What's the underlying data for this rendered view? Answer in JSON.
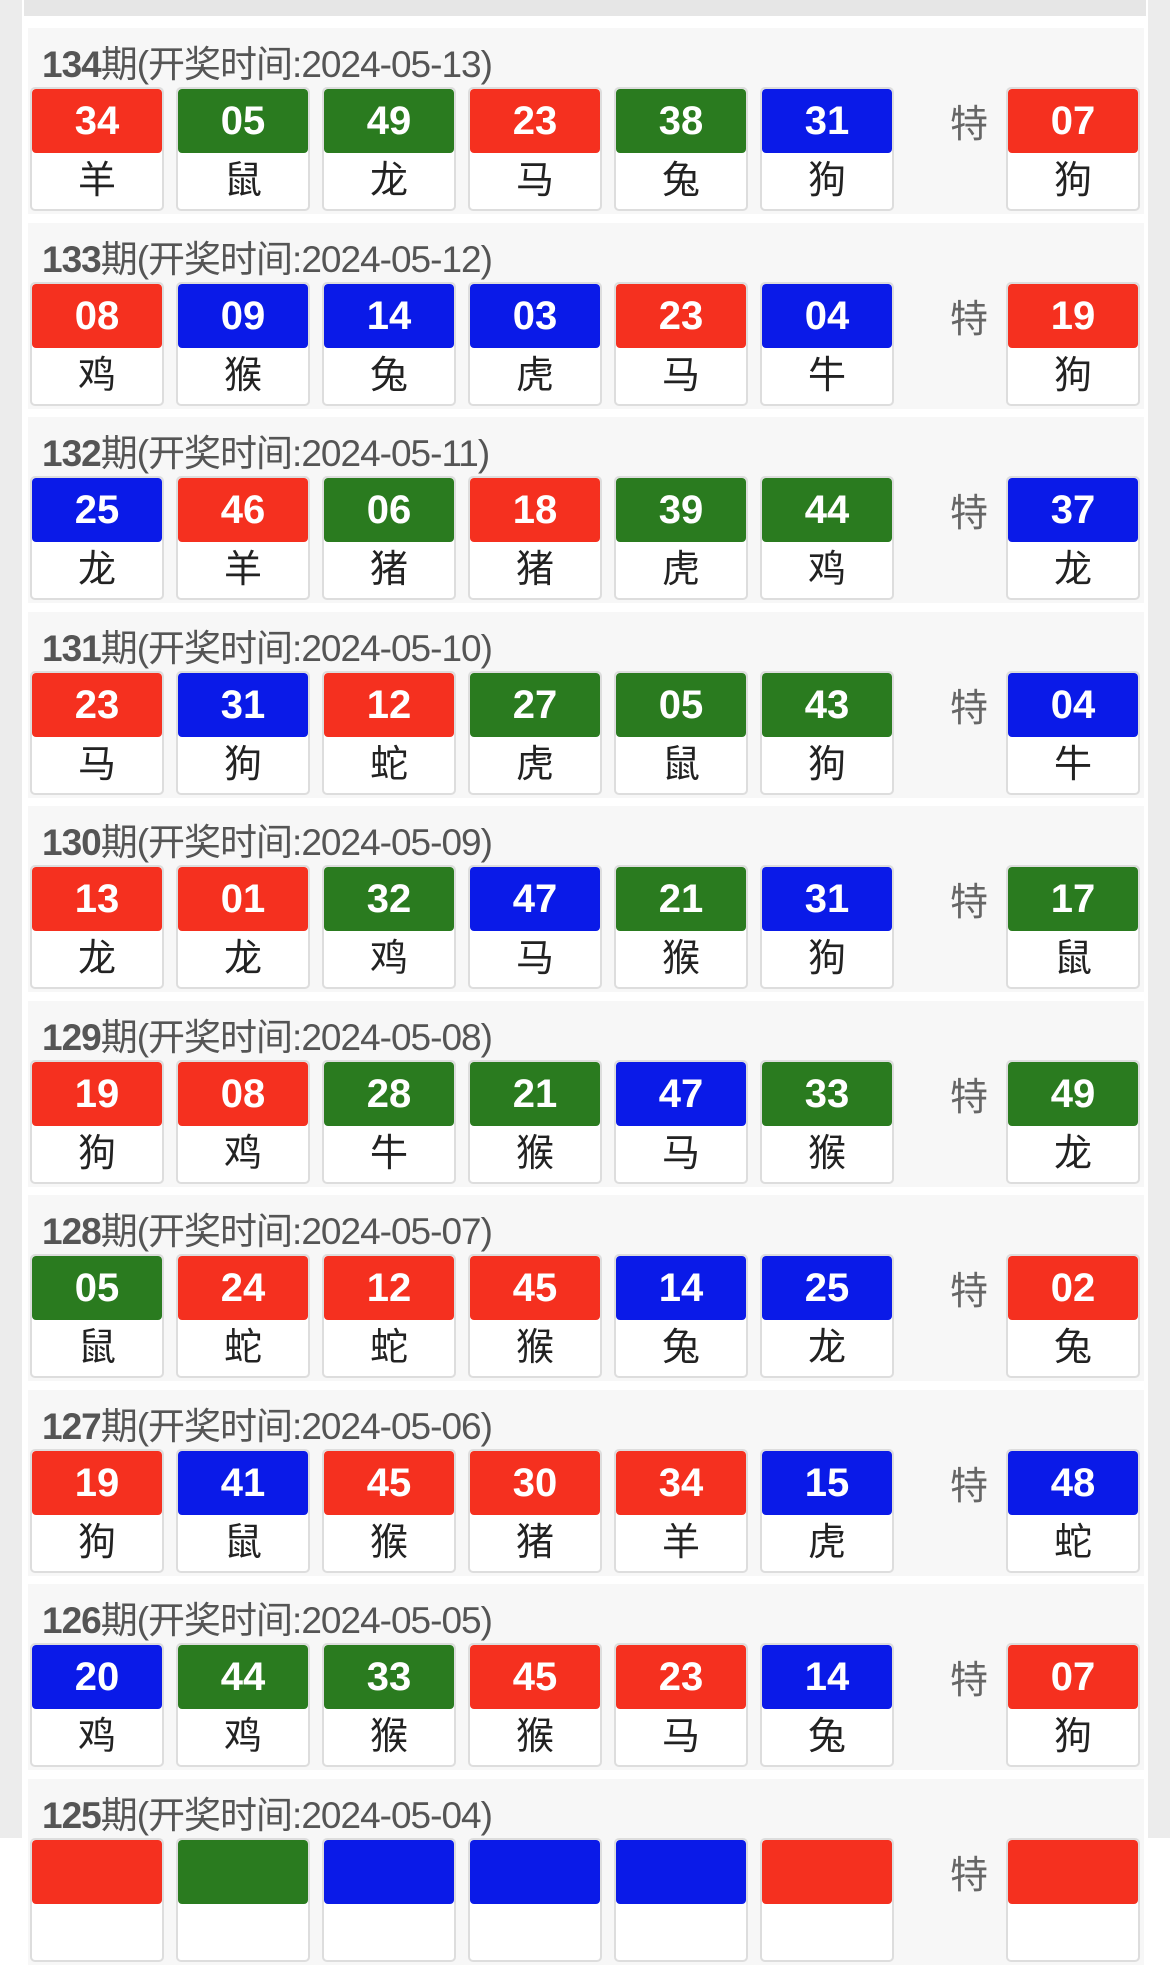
{
  "colors": {
    "red": "#f5301f",
    "green": "#2a7b1f",
    "blue": "#0a1ae8"
  },
  "special_label": "特",
  "records": [
    {
      "period": "134",
      "suffix": "期(开奖时间:2024-05-13)",
      "balls": [
        [
          "34",
          "羊",
          "red"
        ],
        [
          "05",
          "鼠",
          "green"
        ],
        [
          "49",
          "龙",
          "green"
        ],
        [
          "23",
          "马",
          "red"
        ],
        [
          "38",
          "兔",
          "green"
        ],
        [
          "31",
          "狗",
          "blue"
        ]
      ],
      "special": [
        "07",
        "狗",
        "red"
      ]
    },
    {
      "period": "133",
      "suffix": "期(开奖时间:2024-05-12)",
      "balls": [
        [
          "08",
          "鸡",
          "red"
        ],
        [
          "09",
          "猴",
          "blue"
        ],
        [
          "14",
          "兔",
          "blue"
        ],
        [
          "03",
          "虎",
          "blue"
        ],
        [
          "23",
          "马",
          "red"
        ],
        [
          "04",
          "牛",
          "blue"
        ]
      ],
      "special": [
        "19",
        "狗",
        "red"
      ]
    },
    {
      "period": "132",
      "suffix": "期(开奖时间:2024-05-11)",
      "balls": [
        [
          "25",
          "龙",
          "blue"
        ],
        [
          "46",
          "羊",
          "red"
        ],
        [
          "06",
          "猪",
          "green"
        ],
        [
          "18",
          "猪",
          "red"
        ],
        [
          "39",
          "虎",
          "green"
        ],
        [
          "44",
          "鸡",
          "green"
        ]
      ],
      "special": [
        "37",
        "龙",
        "blue"
      ]
    },
    {
      "period": "131",
      "suffix": "期(开奖时间:2024-05-10)",
      "balls": [
        [
          "23",
          "马",
          "red"
        ],
        [
          "31",
          "狗",
          "blue"
        ],
        [
          "12",
          "蛇",
          "red"
        ],
        [
          "27",
          "虎",
          "green"
        ],
        [
          "05",
          "鼠",
          "green"
        ],
        [
          "43",
          "狗",
          "green"
        ]
      ],
      "special": [
        "04",
        "牛",
        "blue"
      ]
    },
    {
      "period": "130",
      "suffix": "期(开奖时间:2024-05-09)",
      "balls": [
        [
          "13",
          "龙",
          "red"
        ],
        [
          "01",
          "龙",
          "red"
        ],
        [
          "32",
          "鸡",
          "green"
        ],
        [
          "47",
          "马",
          "blue"
        ],
        [
          "21",
          "猴",
          "green"
        ],
        [
          "31",
          "狗",
          "blue"
        ]
      ],
      "special": [
        "17",
        "鼠",
        "green"
      ]
    },
    {
      "period": "129",
      "suffix": "期(开奖时间:2024-05-08)",
      "balls": [
        [
          "19",
          "狗",
          "red"
        ],
        [
          "08",
          "鸡",
          "red"
        ],
        [
          "28",
          "牛",
          "green"
        ],
        [
          "21",
          "猴",
          "green"
        ],
        [
          "47",
          "马",
          "blue"
        ],
        [
          "33",
          "猴",
          "green"
        ]
      ],
      "special": [
        "49",
        "龙",
        "green"
      ]
    },
    {
      "period": "128",
      "suffix": "期(开奖时间:2024-05-07)",
      "balls": [
        [
          "05",
          "鼠",
          "green"
        ],
        [
          "24",
          "蛇",
          "red"
        ],
        [
          "12",
          "蛇",
          "red"
        ],
        [
          "45",
          "猴",
          "red"
        ],
        [
          "14",
          "兔",
          "blue"
        ],
        [
          "25",
          "龙",
          "blue"
        ]
      ],
      "special": [
        "02",
        "兔",
        "red"
      ]
    },
    {
      "period": "127",
      "suffix": "期(开奖时间:2024-05-06)",
      "balls": [
        [
          "19",
          "狗",
          "red"
        ],
        [
          "41",
          "鼠",
          "blue"
        ],
        [
          "45",
          "猴",
          "red"
        ],
        [
          "30",
          "猪",
          "red"
        ],
        [
          "34",
          "羊",
          "red"
        ],
        [
          "15",
          "虎",
          "blue"
        ]
      ],
      "special": [
        "48",
        "蛇",
        "blue"
      ]
    },
    {
      "period": "126",
      "suffix": "期(开奖时间:2024-05-05)",
      "balls": [
        [
          "20",
          "鸡",
          "blue"
        ],
        [
          "44",
          "鸡",
          "green"
        ],
        [
          "33",
          "猴",
          "green"
        ],
        [
          "45",
          "猴",
          "red"
        ],
        [
          "23",
          "马",
          "red"
        ],
        [
          "14",
          "兔",
          "blue"
        ]
      ],
      "special": [
        "07",
        "狗",
        "red"
      ]
    },
    {
      "period": "125",
      "suffix": "期(开奖时间:2024-05-04)",
      "balls": [
        [
          "",
          "",
          "red"
        ],
        [
          "",
          "",
          "green"
        ],
        [
          "",
          "",
          "blue"
        ],
        [
          "",
          "",
          "blue"
        ],
        [
          "",
          "",
          "blue"
        ],
        [
          "",
          "",
          "red"
        ]
      ],
      "special": [
        "",
        "",
        "red"
      ]
    }
  ]
}
